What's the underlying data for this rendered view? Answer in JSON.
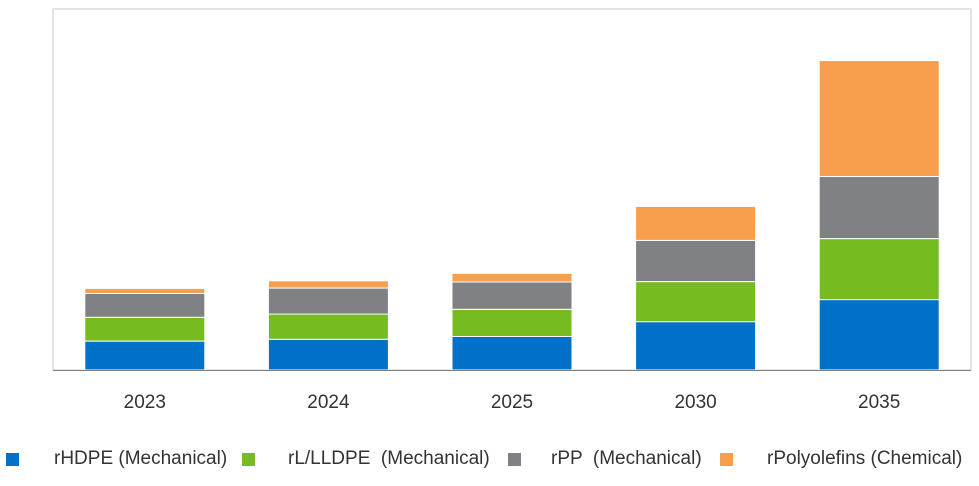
{
  "chart_data": {
    "type": "stacked-bar",
    "title": "",
    "xlabel": "",
    "ylabel": "",
    "grid": false,
    "legend_position": "bottom",
    "categories": [
      "2023",
      "2024",
      "2025",
      "2030",
      "2035"
    ],
    "ylim": [
      0,
      100
    ],
    "series": [
      {
        "name": "rHDPE (Mechanical)",
        "color": "#0070C9",
        "values": [
          8.0,
          8.5,
          9.3,
          13.4,
          19.5
        ]
      },
      {
        "name": "rL/LLDPE  (Mechanical)",
        "color": "#76BC21",
        "values": [
          6.6,
          7.0,
          7.5,
          11.1,
          16.9
        ]
      },
      {
        "name": "rPP  (Mechanical)",
        "color": "#808184",
        "values": [
          6.6,
          7.2,
          7.6,
          11.4,
          17.2
        ]
      },
      {
        "name": "rPolyolefins (Chemical)",
        "color": "#F79F4C",
        "values": [
          1.4,
          2.0,
          2.4,
          9.4,
          32.1
        ]
      }
    ]
  }
}
